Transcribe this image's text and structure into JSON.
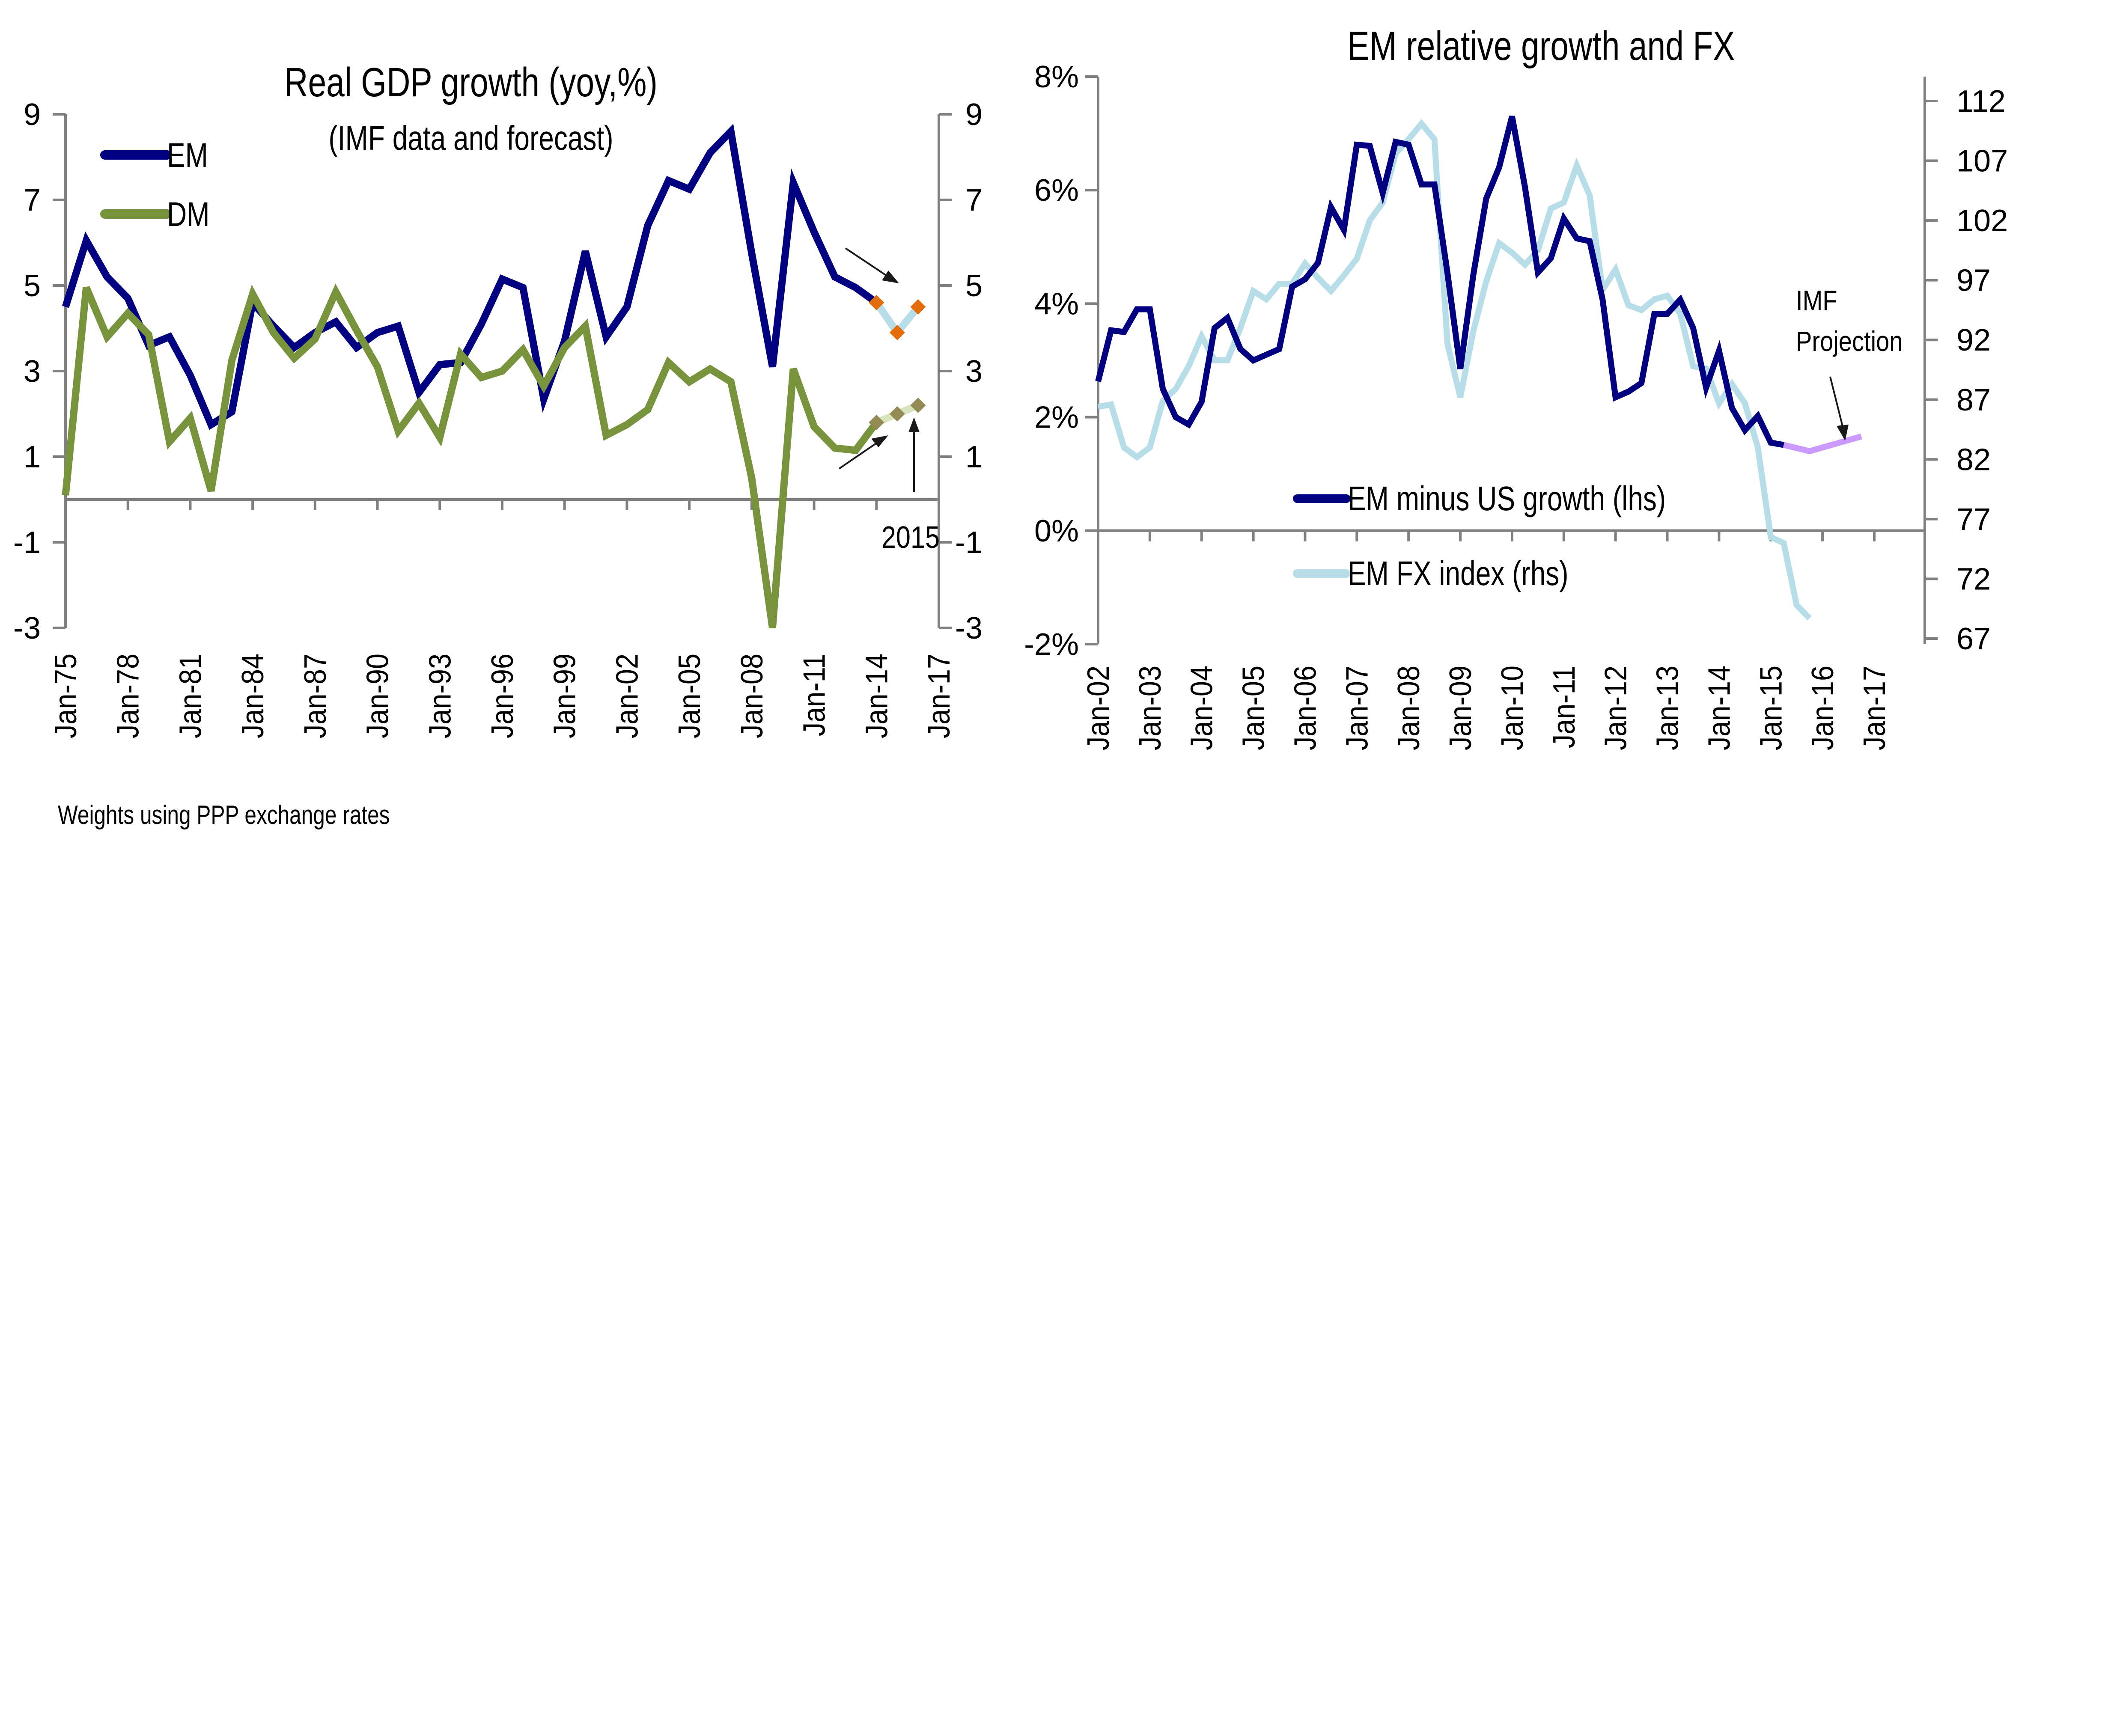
{
  "chart_data": [
    {
      "type": "line",
      "title": "Real GDP growth (yoy,%)",
      "subtitle": "(IMF data and forecast)",
      "footnote": "Weights using PPP exchange rates",
      "annotation": "2015",
      "xlabel": "",
      "ylabel": "",
      "ylim": [
        -3,
        9
      ],
      "yticks": [
        "9",
        "7",
        "5",
        "3",
        "1",
        "-1",
        "-3"
      ],
      "ytick_values": [
        9,
        7,
        5,
        3,
        1,
        -1,
        -3
      ],
      "y2ticks": [
        "9",
        "7",
        "5",
        "3",
        "1",
        "-1",
        "-3"
      ],
      "xlim": [
        1975,
        2017
      ],
      "xticks": [
        "Jan-75",
        "Jan-78",
        "Jan-81",
        "Jan-84",
        "Jan-87",
        "Jan-90",
        "Jan-93",
        "Jan-96",
        "Jan-99",
        "Jan-02",
        "Jan-05",
        "Jan-08",
        "Jan-11",
        "Jan-14",
        "Jan-17"
      ],
      "xtick_values": [
        1975,
        1978,
        1981,
        1984,
        1987,
        1990,
        1993,
        1996,
        1999,
        2002,
        2005,
        2008,
        2011,
        2014,
        2017
      ],
      "legend_position": "top-left",
      "grid": false,
      "x": [
        1975,
        1976,
        1977,
        1978,
        1979,
        1980,
        1981,
        1982,
        1983,
        1984,
        1985,
        1986,
        1987,
        1988,
        1989,
        1990,
        1991,
        1992,
        1993,
        1994,
        1995,
        1996,
        1997,
        1998,
        1999,
        2000,
        2001,
        2002,
        2003,
        2004,
        2005,
        2006,
        2007,
        2008,
        2009,
        2010,
        2011,
        2012,
        2013,
        2014
      ],
      "series": [
        {
          "name": "EM",
          "color": "#000080",
          "values": [
            4.5,
            6.05,
            5.2,
            4.7,
            3.6,
            3.8,
            2.9,
            1.75,
            2.05,
            4.6,
            4.05,
            3.55,
            3.9,
            4.15,
            3.55,
            3.9,
            4.05,
            2.5,
            3.15,
            3.2,
            4.1,
            5.15,
            4.95,
            2.35,
            3.7,
            5.8,
            3.8,
            4.5,
            6.4,
            7.45,
            7.25,
            8.1,
            8.6,
            5.75,
            3.1,
            7.4,
            6.25,
            5.2,
            4.95,
            4.6
          ]
        },
        {
          "name": "DM",
          "color": "#77933C",
          "values": [
            0.1,
            4.95,
            3.8,
            4.35,
            3.85,
            1.35,
            1.9,
            0.2,
            3.25,
            4.8,
            3.9,
            3.3,
            3.75,
            4.85,
            3.95,
            3.1,
            1.6,
            2.25,
            1.45,
            3.4,
            2.85,
            3.0,
            3.5,
            2.65,
            3.55,
            4.05,
            1.5,
            1.75,
            2.1,
            3.2,
            2.75,
            3.05,
            2.75,
            0.5,
            -3.2,
            3.05,
            1.7,
            1.2,
            1.15,
            1.8
          ]
        }
      ],
      "forecast": [
        {
          "name": "EM forecast",
          "x": [
            2014,
            2015,
            2016
          ],
          "values": [
            4.6,
            3.9,
            4.5
          ],
          "line_color": "#B7DDE8",
          "marker_color": "#E46C0A"
        },
        {
          "name": "DM forecast",
          "x": [
            2014,
            2015,
            2016
          ],
          "values": [
            1.8,
            2.0,
            2.2
          ],
          "line_color": "#D7E4BD",
          "marker_color": "#948A54"
        }
      ]
    },
    {
      "type": "line",
      "title": "EM relative growth and FX",
      "annotation": "IMF\nProjection",
      "annotation_lines": [
        "IMF",
        "Projection"
      ],
      "xlabel": "",
      "ylabel": "",
      "ylim": [
        -2,
        8
      ],
      "y2lim": [
        67,
        112
      ],
      "yticks": [
        "8%",
        "6%",
        "4%",
        "2%",
        "0%",
        "-2%"
      ],
      "ytick_values": [
        8,
        6,
        4,
        2,
        0,
        -2
      ],
      "y2ticks": [
        "112",
        "107",
        "102",
        "97",
        "92",
        "87",
        "82",
        "77",
        "72",
        "67"
      ],
      "y2tick_values": [
        112,
        107,
        102,
        97,
        92,
        87,
        82,
        77,
        72,
        67
      ],
      "xlim": [
        2002,
        2017
      ],
      "xticks": [
        "Jan-02",
        "Jan-03",
        "Jan-04",
        "Jan-05",
        "Jan-06",
        "Jan-07",
        "Jan-08",
        "Jan-09",
        "Jan-10",
        "Jan-11",
        "Jan-12",
        "Jan-13",
        "Jan-14",
        "Jan-15",
        "Jan-16",
        "Jan-17"
      ],
      "xtick_values": [
        2002,
        2003,
        2004,
        2005,
        2006,
        2007,
        2008,
        2009,
        2010,
        2011,
        2012,
        2013,
        2014,
        2015,
        2016,
        2017
      ],
      "legend_position": "bottom-center",
      "grid": false,
      "series": [
        {
          "name": "EM minus US growth (lhs)",
          "axis": "left",
          "color": "#000080",
          "x_start": 2002,
          "x_step": 0.25,
          "values": [
            2.63,
            3.53,
            3.5,
            3.9,
            3.9,
            2.5,
            2.0,
            1.87,
            2.27,
            3.57,
            3.75,
            3.2,
            3.0,
            3.1,
            3.2,
            4.3,
            4.43,
            4.72,
            5.7,
            5.3,
            6.8,
            6.78,
            5.95,
            6.85,
            6.8,
            6.1,
            6.1,
            4.55,
            2.85,
            4.5,
            5.85,
            6.4,
            7.3,
            6.05,
            4.55,
            4.8,
            5.5,
            5.15,
            5.1,
            4.07,
            2.35,
            2.45,
            2.6,
            3.82,
            3.82,
            4.07,
            3.57,
            2.52,
            3.17,
            2.16,
            1.77,
            2.02,
            1.55,
            1.51
          ]
        },
        {
          "name": "EM FX index (rhs)",
          "axis": "right",
          "color": "#B7DDE8",
          "x_start": 2002,
          "x_step": 0.25,
          "values": [
            86.4,
            86.6,
            83.0,
            82.2,
            83.0,
            86.9,
            87.9,
            89.8,
            92.3,
            90.3,
            90.3,
            93.0,
            96.1,
            95.4,
            96.7,
            96.7,
            98.4,
            97.2,
            96.1,
            97.4,
            98.8,
            102.0,
            103.5,
            107.6,
            108.8,
            110.1,
            108.8,
            91.7,
            87.2,
            92.7,
            96.9,
            100.1,
            99.3,
            98.3,
            99.5,
            103.0,
            103.5,
            106.6,
            104.1,
            96.2,
            97.9,
            94.9,
            94.5,
            95.4,
            95.7,
            94.2,
            89.8,
            89.6,
            86.7,
            88.3,
            86.7,
            83.0,
            75.5,
            75.0,
            69.8,
            68.7
          ]
        }
      ],
      "projection": {
        "name": "IMF Projection",
        "axis": "left",
        "color": "#CC99FF",
        "x": [
          2015.25,
          2015.75,
          2016.75
        ],
        "values": [
          1.51,
          1.4,
          1.66
        ]
      }
    }
  ]
}
